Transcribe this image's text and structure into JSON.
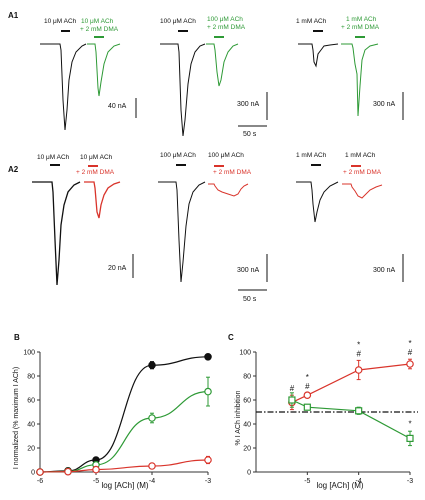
{
  "colors": {
    "black": "#111111",
    "green": "#2e9a36",
    "red": "#d9342b",
    "axis": "#333333"
  },
  "panel_a1": {
    "label": "A1",
    "groups": [
      {
        "black_label": "10 μM ACh",
        "color_label_1": "10 μM ACh",
        "color_label_2": "+ 2 mM DMA"
      },
      {
        "black_label": "100 μM ACh",
        "color_label_1": "100 μM ACh",
        "color_label_2": "+ 2 mM DMA"
      },
      {
        "black_label": "1 mM ACh",
        "color_label_1": "1 mM ACh",
        "color_label_2": "+ 2 mM DMA"
      }
    ],
    "scalebar_1": "40 nA",
    "scalebar_2": "300 nA",
    "scalebar_3": "300 nA",
    "time_scalebar": "50 s"
  },
  "panel_a2": {
    "label": "A2",
    "groups": [
      {
        "black_label": "10 μM ACh",
        "color_label_1": "10 μM ACh",
        "color_label_2": "+ 2 mM DMA"
      },
      {
        "black_label": "100 μM ACh",
        "color_label_1": "100 μM ACh",
        "color_label_2": "+ 2 mM DMA"
      },
      {
        "black_label": "1 mM ACh",
        "color_label_1": "1 mM ACh",
        "color_label_2": "+ 2 mM DMA"
      }
    ],
    "scalebar_1": "20 nA",
    "scalebar_2": "300 nA",
    "scalebar_3": "300 nA",
    "time_scalebar": "50 s"
  },
  "panel_b": {
    "label": "B",
    "ylabel": "I normalized (% maximum I ACh)",
    "xlabel": "log [ACh] (M)"
  },
  "panel_c": {
    "label": "C",
    "ylabel": "% I ACh inhibition",
    "xlabel": "log [ACh] (M)"
  },
  "chart_data": [
    {
      "type": "line",
      "panel": "B",
      "xlabel": "log [ACh] (M)",
      "ylabel": "I normalized (% maximum I ACh)",
      "xlim": [
        -6,
        -3
      ],
      "ylim": [
        0,
        100
      ],
      "xticks": [
        -6,
        -5,
        -4,
        -3
      ],
      "yticks": [
        0,
        20,
        40,
        60,
        80,
        100
      ],
      "series": [
        {
          "color": "#111111",
          "marker": "filled-circle",
          "x": [
            -6,
            -5.5,
            -5,
            -4,
            -3
          ],
          "y": [
            0,
            1,
            10,
            89,
            96
          ],
          "err": [
            0,
            0.5,
            1,
            3,
            2
          ]
        },
        {
          "color": "#2e9a36",
          "marker": "open-circle",
          "x": [
            -6,
            -5.5,
            -5,
            -4,
            -3
          ],
          "y": [
            0,
            0.5,
            6,
            45,
            67
          ],
          "err": [
            0,
            0.5,
            1,
            4,
            12
          ]
        },
        {
          "color": "#d9342b",
          "marker": "open-circle",
          "x": [
            -6,
            -5.5,
            -5,
            -4,
            -3
          ],
          "y": [
            0,
            0.3,
            2,
            5,
            10
          ],
          "err": [
            0,
            0.3,
            0.5,
            1,
            3
          ]
        }
      ]
    },
    {
      "type": "scatter",
      "panel": "C",
      "xlabel": "log [ACh] (M)",
      "ylabel": "% I ACh inhibition",
      "xlim": [
        -6,
        -3
      ],
      "ylim": [
        0,
        100
      ],
      "xticks": [
        -5,
        -4,
        -3
      ],
      "yticks": [
        0,
        20,
        40,
        60,
        80,
        100
      ],
      "reference_line_y": 50,
      "series": [
        {
          "color": "#d9342b",
          "marker": "open-circle",
          "x": [
            -5.3,
            -5,
            -4,
            -3
          ],
          "y": [
            58,
            64,
            85,
            90
          ],
          "err": [
            6,
            2,
            8,
            4
          ]
        },
        {
          "color": "#2e9a36",
          "marker": "open-square",
          "x": [
            -5.3,
            -5,
            -4,
            -3
          ],
          "y": [
            60,
            54,
            51,
            28
          ],
          "err": [
            6,
            2,
            3,
            6
          ]
        }
      ],
      "annotations": [
        {
          "x": -5.3,
          "text": "#"
        },
        {
          "x": -5,
          "text": "*"
        },
        {
          "x": -5,
          "text": "#"
        },
        {
          "x": -4,
          "text": "*"
        },
        {
          "x": -4,
          "text": "#"
        },
        {
          "x": -3,
          "text": "*"
        },
        {
          "x": -3,
          "text": "#"
        },
        {
          "x": -3,
          "text": "*"
        }
      ]
    }
  ]
}
